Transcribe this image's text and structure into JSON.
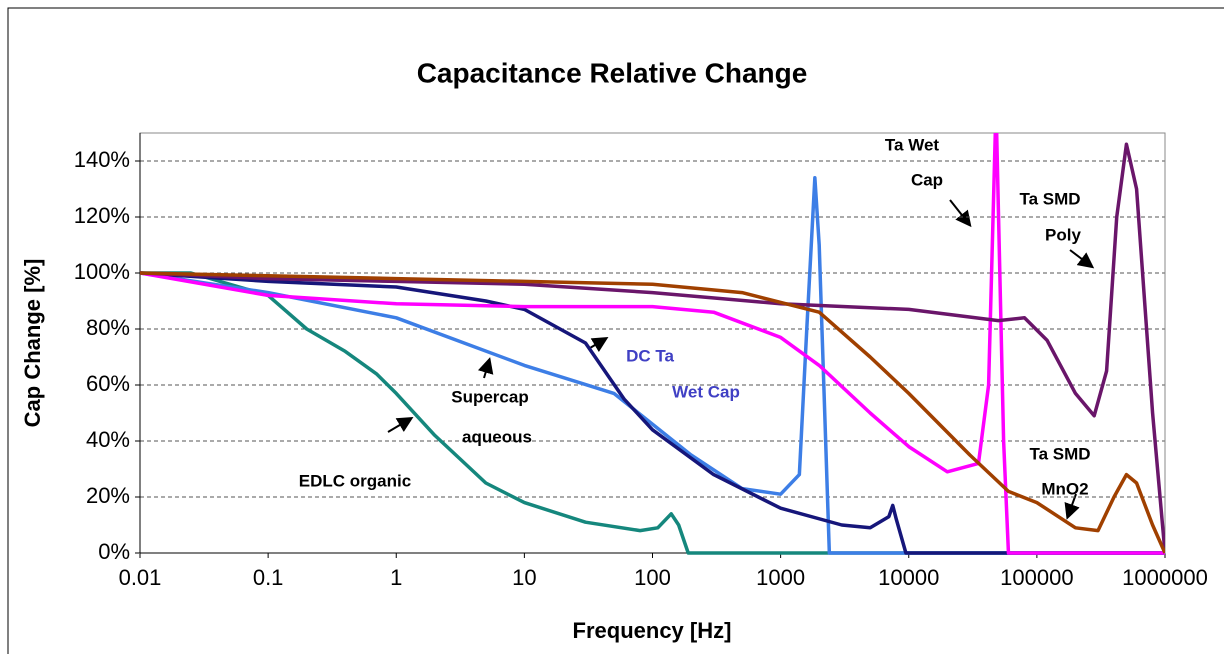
{
  "chart_data": {
    "type": "line",
    "title": "Capacitance Relative Change",
    "xlabel": "Frequency [Hz]",
    "ylabel": "Cap Change [%]",
    "xlog": true,
    "xlim": [
      0.01,
      1000000
    ],
    "xticks": [
      0.01,
      0.1,
      1,
      10,
      100,
      1000,
      10000,
      100000,
      1000000
    ],
    "ylim": [
      0,
      150
    ],
    "yticks": [
      {
        "value": 0,
        "label": "0%"
      },
      {
        "value": 20,
        "label": "20%"
      },
      {
        "value": 40,
        "label": "40%"
      },
      {
        "value": 60,
        "label": "60%"
      },
      {
        "value": 80,
        "label": "80%"
      },
      {
        "value": 100,
        "label": "100%"
      },
      {
        "value": 120,
        "label": "120%"
      },
      {
        "value": 140,
        "label": "140%"
      }
    ],
    "grid": true,
    "series": [
      {
        "name": [
          "EDLC organic"
        ],
        "color": "#15877d",
        "x": [
          0.01,
          0.025,
          0.1,
          0.2,
          0.4,
          0.7,
          1,
          2,
          5,
          10,
          30,
          80,
          110,
          140,
          160,
          190,
          1000000
        ],
        "values": [
          100,
          100,
          92,
          80,
          72,
          64,
          57,
          42,
          25,
          18,
          11,
          8,
          9,
          14,
          10,
          0,
          0
        ]
      },
      {
        "name": [
          "Supercap",
          "aqueous"
        ],
        "color": "#3d7ee6",
        "x": [
          0.01,
          0.1,
          1,
          10,
          50,
          200,
          500,
          1000,
          1400,
          1600,
          1850,
          2000,
          2400,
          1000000
        ],
        "values": [
          100,
          93,
          84,
          67,
          57,
          35,
          23,
          21,
          28,
          80,
          134,
          110,
          0,
          0
        ]
      },
      {
        "name": [
          "DC Ta",
          "Wet Cap"
        ],
        "color": "#16167a",
        "x": [
          0.01,
          0.1,
          1,
          5,
          10,
          30,
          60,
          100,
          300,
          1000,
          3000,
          5000,
          7000,
          7500,
          8000,
          9500,
          1000000
        ],
        "values": [
          100,
          97,
          95,
          90,
          87,
          75,
          55,
          44,
          28,
          16,
          10,
          9,
          13,
          17,
          12,
          0,
          0
        ]
      },
      {
        "name": [
          "Ta Wet",
          "Cap"
        ],
        "color": "#ff00ff",
        "x": [
          0.01,
          0.1,
          1,
          10,
          100,
          300,
          1000,
          2000,
          5000,
          10000,
          20000,
          35000,
          42000,
          48000,
          55000,
          60000,
          1000000
        ],
        "values": [
          100,
          92,
          89,
          88,
          88,
          86,
          77,
          67,
          50,
          38,
          29,
          32,
          60,
          160,
          40,
          0,
          0
        ]
      },
      {
        "name": [
          "Ta SMD",
          "Poly"
        ],
        "color": "#6a166a",
        "x": [
          0.01,
          0.1,
          1,
          10,
          100,
          1000,
          10000,
          50000,
          80000,
          120000,
          200000,
          280000,
          350000,
          420000,
          500000,
          600000,
          800000,
          1000000
        ],
        "values": [
          100,
          98,
          97,
          96,
          93,
          89,
          87,
          83,
          84,
          76,
          57,
          49,
          65,
          120,
          146,
          130,
          50,
          0
        ]
      },
      {
        "name": [
          "Ta SMD",
          "MnO2"
        ],
        "color": "#a04000",
        "x": [
          0.01,
          0.1,
          1,
          10,
          100,
          500,
          2000,
          5000,
          10000,
          30000,
          60000,
          100000,
          200000,
          300000,
          400000,
          500000,
          600000,
          800000,
          1000000
        ],
        "values": [
          100,
          99,
          98,
          97,
          96,
          93,
          86,
          70,
          57,
          35,
          22,
          18,
          9,
          8,
          20,
          28,
          25,
          10,
          0
        ]
      }
    ]
  }
}
